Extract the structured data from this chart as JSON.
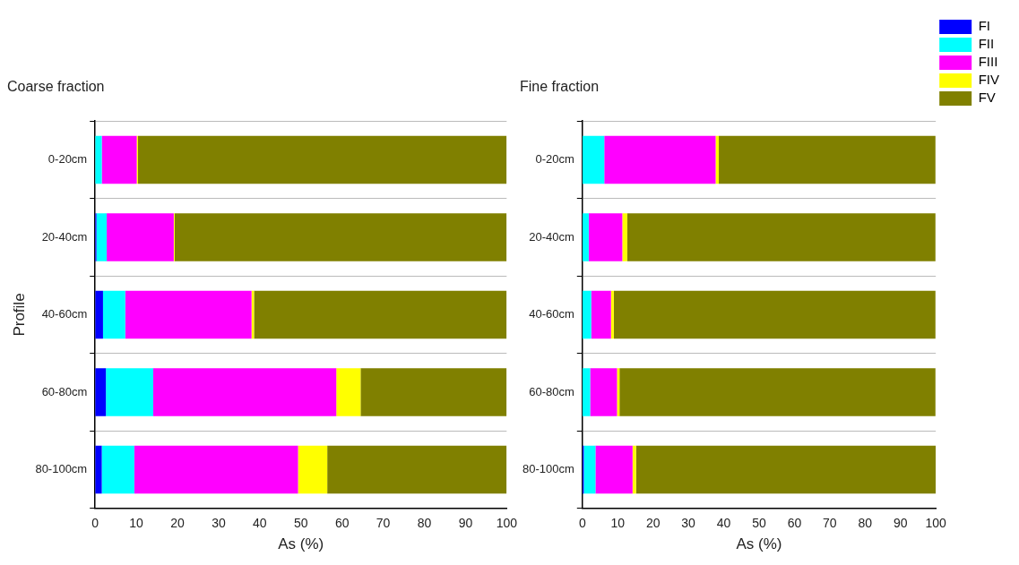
{
  "chart_data": [
    {
      "type": "bar",
      "orientation": "horizontal",
      "stacked": true,
      "title": "Coarse fraction",
      "xlabel": "As (%)",
      "ylabel": "Profile",
      "categories": [
        "0-20cm",
        "20-40cm",
        "40-60cm",
        "60-80cm",
        "80-100cm"
      ],
      "xlim": [
        0,
        100
      ],
      "xticks": [
        0,
        10,
        20,
        30,
        40,
        50,
        60,
        70,
        80,
        90,
        100
      ],
      "grid": "y",
      "legend": false,
      "series": [
        {
          "color": "#0000ff",
          "values": [
            0,
            0.3,
            1.9,
            2.6,
            1.6
          ]
        },
        {
          "color": "#00ffff",
          "values": [
            1.6,
            2.5,
            5.4,
            11.5,
            7.9
          ]
        },
        {
          "color": "#ff00ff",
          "values": [
            8.5,
            16.3,
            30.7,
            44.5,
            39.8
          ]
        },
        {
          "color": "#ffff00",
          "values": [
            0.3,
            0.2,
            0.6,
            5.9,
            7.1
          ]
        },
        {
          "color": "#808000",
          "values": [
            89.6,
            80.7,
            61.4,
            35.5,
            43.6
          ]
        }
      ]
    },
    {
      "type": "bar",
      "orientation": "horizontal",
      "stacked": true,
      "title": "Fine fraction",
      "xlabel": "As (%)",
      "categories": [
        "0-20cm",
        "20-40cm",
        "40-60cm",
        "60-80cm",
        "80-100cm"
      ],
      "xlim": [
        0,
        100
      ],
      "xticks": [
        0,
        10,
        20,
        30,
        40,
        50,
        60,
        70,
        80,
        90,
        100
      ],
      "grid": "y",
      "legend": "top right",
      "series": [
        {
          "name": "FI",
          "color": "#0000ff",
          "values": [
            null,
            null,
            null,
            null,
            0.4
          ]
        },
        {
          "name": "FII",
          "color": "#00ffff",
          "values": [
            6.2,
            1.8,
            2.5,
            2.2,
            3.3
          ]
        },
        {
          "name": "FIII",
          "color": "#ff00ff",
          "values": [
            31.5,
            9.5,
            5.6,
            7.6,
            10.5
          ]
        },
        {
          "name": "FIV",
          "color": "#ffff00",
          "values": [
            0.9,
            1.4,
            0.8,
            0.7,
            1.0
          ]
        },
        {
          "name": "FV",
          "color": "#808000",
          "values": [
            61.3,
            87.2,
            91.0,
            89.4,
            84.8
          ]
        }
      ]
    }
  ]
}
